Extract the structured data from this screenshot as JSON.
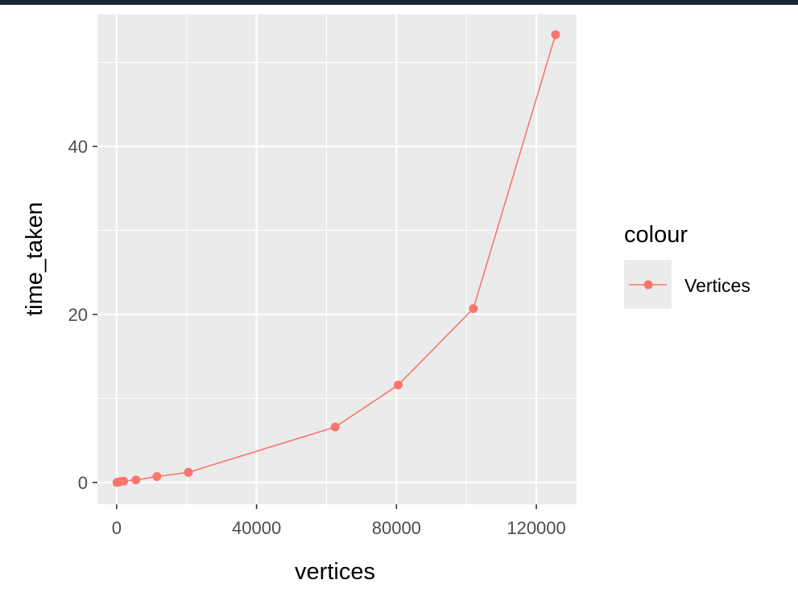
{
  "chart_data": {
    "type": "line",
    "xlabel": "vertices",
    "ylabel": "time_taken",
    "xlim": [
      -5500,
      131500
    ],
    "ylim": [
      -2.6,
      55.7
    ],
    "x_ticks": [
      0,
      40000,
      80000,
      120000
    ],
    "x_tick_labels": [
      "0",
      "40000",
      "80000",
      "120000"
    ],
    "y_ticks": [
      0,
      20,
      40
    ],
    "y_tick_labels": [
      "0",
      "20",
      "40"
    ],
    "grid": true,
    "legend_position": "right",
    "legend_title": "colour",
    "series": [
      {
        "name": "Vertices",
        "color": "#f8766d",
        "x": [
          100,
          500,
          1000,
          2000,
          5500,
          11500,
          20500,
          62500,
          80500,
          102000,
          125500
        ],
        "y": [
          0.0,
          0.05,
          0.1,
          0.15,
          0.3,
          0.7,
          1.2,
          6.6,
          11.6,
          20.7,
          53.3
        ]
      }
    ]
  }
}
